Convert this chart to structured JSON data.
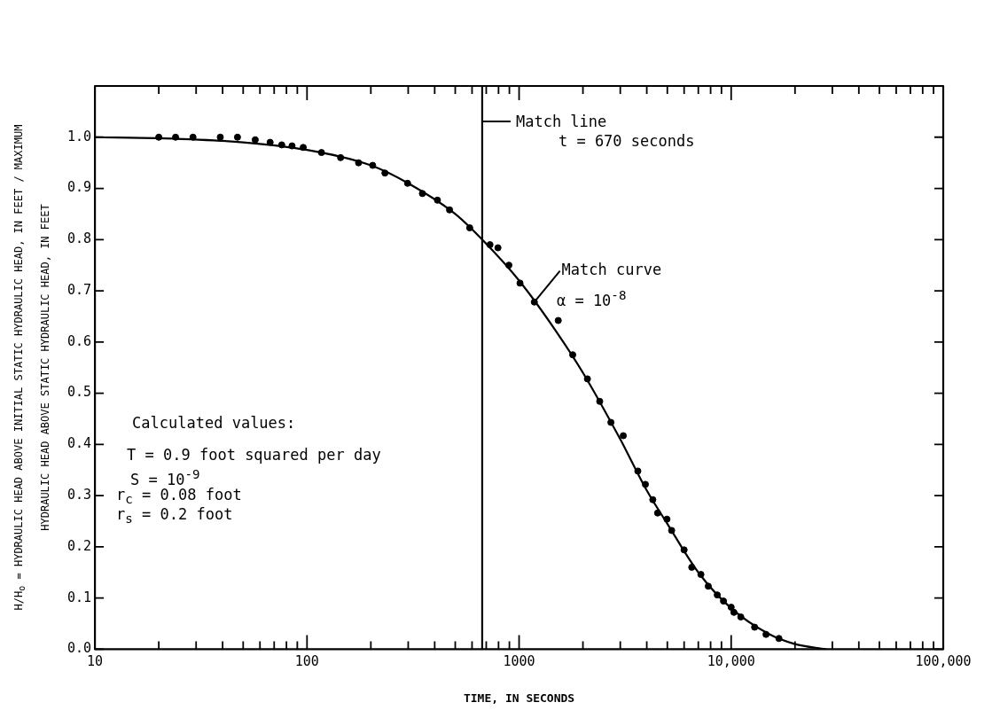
{
  "chart_data": {
    "type": "scatter",
    "xlabel": "TIME, IN SECONDS",
    "ylabel": "H/H$_{o}$ = HYDRAULIC HEAD ABOVE INITIAL STATIC HYDRAULIC HEAD, IN FEET / MAXIMUM HYDRAULIC HEAD ABOVE STATIC HYDRAULIC HEAD, IN FEET",
    "log": "x",
    "xlim": [
      10,
      100000
    ],
    "ylim": [
      0,
      1.1
    ],
    "xticks": [
      10,
      {
        "value": 20,
        "label": null
      },
      {
        "value": 30,
        "label": null
      },
      {
        "value": 40,
        "label": null
      },
      {
        "value": 50,
        "label": null
      },
      {
        "value": 60,
        "label": null
      },
      {
        "value": 70,
        "label": null
      },
      {
        "value": 80,
        "label": null
      },
      {
        "value": 90,
        "label": null
      },
      100,
      {
        "value": 200,
        "label": null
      },
      {
        "value": 300,
        "label": null
      },
      {
        "value": 400,
        "label": null
      },
      {
        "value": 500,
        "label": null
      },
      {
        "value": 600,
        "label": null
      },
      {
        "value": 700,
        "label": null
      },
      {
        "value": 800,
        "label": null
      },
      {
        "value": 900,
        "label": null
      },
      1000,
      {
        "value": 2000,
        "label": null
      },
      {
        "value": 3000,
        "label": null
      },
      {
        "value": 4000,
        "label": null
      },
      {
        "value": 5000,
        "label": null
      },
      {
        "value": 6000,
        "label": null
      },
      {
        "value": 7000,
        "label": null
      },
      {
        "value": 8000,
        "label": null
      },
      {
        "value": 9000,
        "label": null
      },
      {
        "value": 10000,
        "label": "10,000"
      },
      {
        "value": 20000,
        "label": null
      },
      {
        "value": 30000,
        "label": null
      },
      {
        "value": 40000,
        "label": null
      },
      {
        "value": 50000,
        "label": null
      },
      {
        "value": 60000,
        "label": null
      },
      {
        "value": 70000,
        "label": null
      },
      {
        "value": 80000,
        "label": null
      },
      {
        "value": 90000,
        "label": null
      },
      {
        "value": 100000,
        "label": "100,000"
      }
    ],
    "yticks": [
      {
        "value": 0,
        "label": "0.0"
      },
      {
        "value": 0.1,
        "label": "0.1"
      },
      {
        "value": 0.2,
        "label": "0.2"
      },
      {
        "value": 0.3,
        "label": "0.3"
      },
      {
        "value": 0.4,
        "label": "0.4"
      },
      {
        "value": 0.5,
        "label": "0.5"
      },
      {
        "value": 0.6,
        "label": "0.6"
      },
      {
        "value": 0.7,
        "label": "0.7"
      },
      {
        "value": 0.8,
        "label": "0.8"
      },
      {
        "value": 0.9,
        "label": "0.9"
      },
      {
        "value": 1,
        "label": "1.0"
      }
    ],
    "grid": false,
    "legend": false,
    "line_style": "solid",
    "series": [
      {
        "marker": "circle",
        "color": "#000000",
        "x": [
          20,
          24,
          29,
          39,
          47,
          57,
          67,
          76,
          85,
          96,
          117,
          144,
          175,
          204,
          233,
          298,
          350,
          412,
          470,
          585,
          729,
          795,
          895,
          1010,
          1180,
          1530,
          1790,
          2100,
          2400,
          2710,
          3100,
          3630,
          3940,
          4270,
          4500,
          4980,
          5240,
          6000,
          6520,
          7200,
          7800,
          8600,
          9200,
          10000,
          10300,
          11100,
          12900,
          14600,
          16800
        ],
        "values": [
          1.0,
          1.0,
          1.0,
          1.0,
          1.0,
          0.995,
          0.99,
          0.985,
          0.983,
          0.98,
          0.97,
          0.96,
          0.95,
          0.945,
          0.93,
          0.91,
          0.89,
          0.877,
          0.858,
          0.823,
          0.79,
          0.784,
          0.75,
          0.715,
          0.678,
          0.642,
          0.575,
          0.528,
          0.484,
          0.443,
          0.417,
          0.348,
          0.322,
          0.292,
          0.266,
          0.254,
          0.232,
          0.194,
          0.16,
          0.146,
          0.123,
          0.106,
          0.094,
          0.082,
          0.072,
          0.063,
          0.043,
          0.029,
          0.021
        ]
      },
      {
        "type": "line",
        "color": "#000000",
        "x": [
          10,
          20,
          50,
          100,
          200,
          300,
          500,
          670,
          1000,
          1500,
          2000,
          3000,
          4000,
          5000,
          7000,
          10000,
          15000,
          20000,
          28000
        ],
        "values": [
          1.0,
          0.998,
          0.99,
          0.975,
          0.945,
          0.91,
          0.85,
          0.8,
          0.72,
          0.62,
          0.54,
          0.41,
          0.31,
          0.245,
          0.15,
          0.08,
          0.03,
          0.01,
          0
        ]
      }
    ],
    "ref_lines": [
      {
        "axis": "x",
        "value": 670,
        "label": "Match line",
        "color": "#000000",
        "line_style": "solid"
      }
    ],
    "annotations": [
      "t = 670 seconds",
      {
        "text": "Match curve",
        "x": 1190,
        "y": 0.68
      },
      "α = 10$^{-8}$",
      "Calculated values:",
      "T = 0.9 foot squared per day",
      "S = 10$^{-9}$",
      "r$_{c}$ = 0.08 foot",
      "r$_{s}$ = 0.2 foot"
    ]
  }
}
